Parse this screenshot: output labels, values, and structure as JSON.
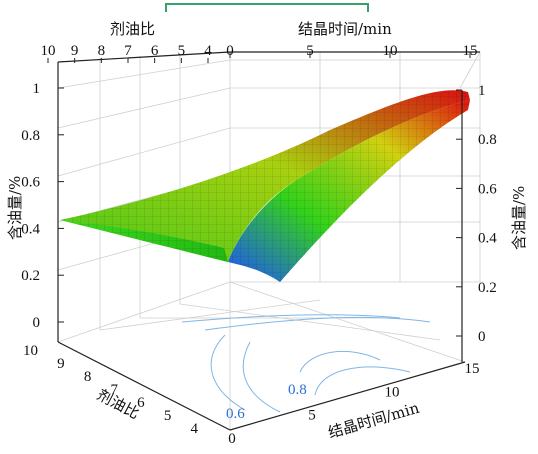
{
  "chart_data": {
    "type": "surface3d",
    "title": "",
    "axis_labels": {
      "agent_oil_ratio": "剂油比",
      "crystallization_time": "结晶时间/min",
      "oil_content": "含油量/%"
    },
    "ticks": {
      "agent_oil_ratio": [
        "4",
        "5",
        "6",
        "7",
        "8",
        "9",
        "10"
      ],
      "crystallization_time": [
        "0",
        "5",
        "10",
        "15"
      ],
      "oil_content": [
        "0",
        "0.2",
        "0.4",
        "0.6",
        "0.8",
        "1"
      ]
    },
    "ranges": {
      "agent_oil_ratio": [
        4,
        10
      ],
      "crystallization_time": [
        0,
        15
      ],
      "oil_content": [
        0,
        1
      ]
    },
    "surface_grid": {
      "x_ratio": [
        4,
        7,
        10
      ],
      "y_time": [
        0,
        7.5,
        15
      ],
      "z_oil": [
        [
          0.26,
          0.65,
          0.98
        ],
        [
          0.34,
          0.62,
          0.92
        ],
        [
          0.44,
          0.56,
          0.84
        ]
      ]
    },
    "contour_labels": [
      "0.6",
      "0.8"
    ],
    "colors": {
      "low": "#1e4fff",
      "mid": "#33d11a",
      "high": "#e01010",
      "contour": "#7fb6e8",
      "top_bar": "#3aa06a"
    }
  }
}
